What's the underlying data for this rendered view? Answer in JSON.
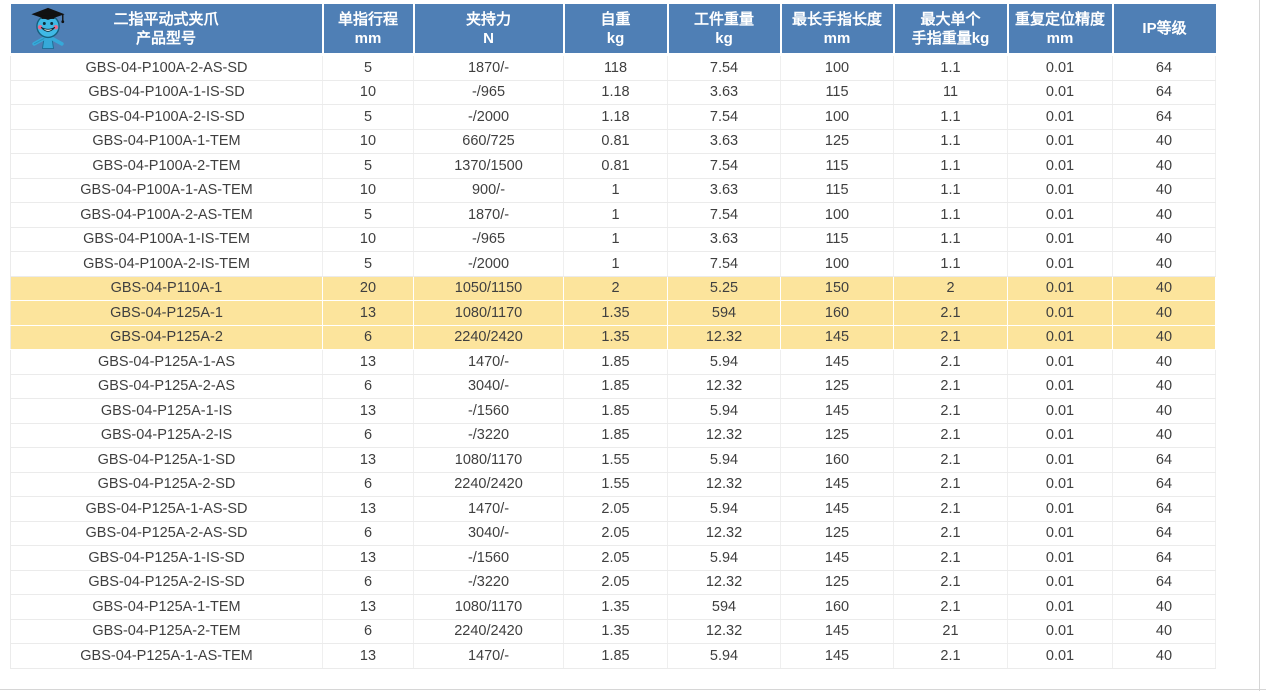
{
  "colors": {
    "header_bg": "#4f7fb5",
    "header_text": "#ffffff",
    "highlight_bg": "#fce49c",
    "grid_line": "#ebebeb",
    "cell_text": "#3f3f3f"
  },
  "table": {
    "header_icon": "mascot-graduate-icon",
    "columns": [
      {
        "key": "model",
        "line1": "二指平动式夹爪",
        "line2": "产品型号"
      },
      {
        "key": "stroke_mm",
        "line1": "单指行程",
        "line2": "mm"
      },
      {
        "key": "force_n",
        "line1": "夹持力",
        "line2": "N"
      },
      {
        "key": "weight_kg",
        "line1": "自重",
        "line2": "kg"
      },
      {
        "key": "workpiece_kg",
        "line1": "工件重量",
        "line2": "kg"
      },
      {
        "key": "finger_length_mm",
        "line1": "最长手指长度",
        "line2": "mm"
      },
      {
        "key": "finger_weight_kg",
        "line1": "最大单个",
        "line2": "手指重量kg"
      },
      {
        "key": "precision_mm",
        "line1": "重复定位精度",
        "line2": "mm"
      },
      {
        "key": "ip_rating",
        "line1": "IP等级",
        "line2": ""
      }
    ],
    "rows": [
      {
        "highlight": false,
        "cells": [
          "GBS-04-P100A-2-AS-SD",
          "5",
          "1870/-",
          "118",
          "7.54",
          "100",
          "1.1",
          "0.01",
          "64"
        ]
      },
      {
        "highlight": false,
        "cells": [
          "GBS-04-P100A-1-IS-SD",
          "10",
          "-/965",
          "1.18",
          "3.63",
          "115",
          "11",
          "0.01",
          "64"
        ]
      },
      {
        "highlight": false,
        "cells": [
          "GBS-04-P100A-2-IS-SD",
          "5",
          "-/2000",
          "1.18",
          "7.54",
          "100",
          "1.1",
          "0.01",
          "64"
        ]
      },
      {
        "highlight": false,
        "cells": [
          "GBS-04-P100A-1-TEM",
          "10",
          "660/725",
          "0.81",
          "3.63",
          "125",
          "1.1",
          "0.01",
          "40"
        ]
      },
      {
        "highlight": false,
        "cells": [
          "GBS-04-P100A-2-TEM",
          "5",
          "1370/1500",
          "0.81",
          "7.54",
          "115",
          "1.1",
          "0.01",
          "40"
        ]
      },
      {
        "highlight": false,
        "cells": [
          "GBS-04-P100A-1-AS-TEM",
          "10",
          "900/-",
          "1",
          "3.63",
          "115",
          "1.1",
          "0.01",
          "40"
        ]
      },
      {
        "highlight": false,
        "cells": [
          "GBS-04-P100A-2-AS-TEM",
          "5",
          "1870/-",
          "1",
          "7.54",
          "100",
          "1.1",
          "0.01",
          "40"
        ]
      },
      {
        "highlight": false,
        "cells": [
          "GBS-04-P100A-1-IS-TEM",
          "10",
          "-/965",
          "1",
          "3.63",
          "115",
          "1.1",
          "0.01",
          "40"
        ]
      },
      {
        "highlight": false,
        "cells": [
          "GBS-04-P100A-2-IS-TEM",
          "5",
          "-/2000",
          "1",
          "7.54",
          "100",
          "1.1",
          "0.01",
          "40"
        ]
      },
      {
        "highlight": true,
        "cells": [
          "GBS-04-P110A-1",
          "20",
          "1050/1150",
          "2",
          "5.25",
          "150",
          "2",
          "0.01",
          "40"
        ]
      },
      {
        "highlight": true,
        "cells": [
          "GBS-04-P125A-1",
          "13",
          "1080/1170",
          "1.35",
          "594",
          "160",
          "2.1",
          "0.01",
          "40"
        ]
      },
      {
        "highlight": true,
        "cells": [
          "GBS-04-P125A-2",
          "6",
          "2240/2420",
          "1.35",
          "12.32",
          "145",
          "2.1",
          "0.01",
          "40"
        ]
      },
      {
        "highlight": false,
        "cells": [
          "GBS-04-P125A-1-AS",
          "13",
          "1470/-",
          "1.85",
          "5.94",
          "145",
          "2.1",
          "0.01",
          "40"
        ]
      },
      {
        "highlight": false,
        "cells": [
          "GBS-04-P125A-2-AS",
          "6",
          "3040/-",
          "1.85",
          "12.32",
          "125",
          "2.1",
          "0.01",
          "40"
        ]
      },
      {
        "highlight": false,
        "cells": [
          "GBS-04-P125A-1-IS",
          "13",
          "-/1560",
          "1.85",
          "5.94",
          "145",
          "2.1",
          "0.01",
          "40"
        ]
      },
      {
        "highlight": false,
        "cells": [
          "GBS-04-P125A-2-IS",
          "6",
          "-/3220",
          "1.85",
          "12.32",
          "125",
          "2.1",
          "0.01",
          "40"
        ]
      },
      {
        "highlight": false,
        "cells": [
          "GBS-04-P125A-1-SD",
          "13",
          "1080/1170",
          "1.55",
          "5.94",
          "160",
          "2.1",
          "0.01",
          "64"
        ]
      },
      {
        "highlight": false,
        "cells": [
          "GBS-04-P125A-2-SD",
          "6",
          "2240/2420",
          "1.55",
          "12.32",
          "145",
          "2.1",
          "0.01",
          "64"
        ]
      },
      {
        "highlight": false,
        "cells": [
          "GBS-04-P125A-1-AS-SD",
          "13",
          "1470/-",
          "2.05",
          "5.94",
          "145",
          "2.1",
          "0.01",
          "64"
        ]
      },
      {
        "highlight": false,
        "cells": [
          "GBS-04-P125A-2-AS-SD",
          "6",
          "3040/-",
          "2.05",
          "12.32",
          "125",
          "2.1",
          "0.01",
          "64"
        ]
      },
      {
        "highlight": false,
        "cells": [
          "GBS-04-P125A-1-IS-SD",
          "13",
          "-/1560",
          "2.05",
          "5.94",
          "145",
          "2.1",
          "0.01",
          "64"
        ]
      },
      {
        "highlight": false,
        "cells": [
          "GBS-04-P125A-2-IS-SD",
          "6",
          "-/3220",
          "2.05",
          "12.32",
          "125",
          "2.1",
          "0.01",
          "64"
        ]
      },
      {
        "highlight": false,
        "cells": [
          "GBS-04-P125A-1-TEM",
          "13",
          "1080/1170",
          "1.35",
          "594",
          "160",
          "2.1",
          "0.01",
          "40"
        ]
      },
      {
        "highlight": false,
        "cells": [
          "GBS-04-P125A-2-TEM",
          "6",
          "2240/2420",
          "1.35",
          "12.32",
          "145",
          "21",
          "0.01",
          "40"
        ]
      },
      {
        "highlight": false,
        "cells": [
          "GBS-04-P125A-1-AS-TEM",
          "13",
          "1470/-",
          "1.85",
          "5.94",
          "145",
          "2.1",
          "0.01",
          "40"
        ]
      }
    ]
  }
}
